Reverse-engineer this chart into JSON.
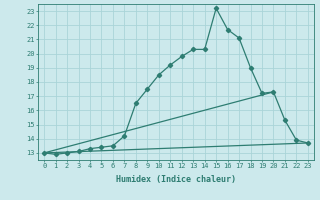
{
  "xlabel": "Humidex (Indice chaleur)",
  "ylabel": "",
  "background_color": "#cce9ec",
  "grid_color": "#aad4d8",
  "line_color": "#2e7d72",
  "xlim": [
    -0.5,
    23.5
  ],
  "ylim": [
    12.5,
    23.5
  ],
  "yticks": [
    13,
    14,
    15,
    16,
    17,
    18,
    19,
    20,
    21,
    22,
    23
  ],
  "xticks": [
    0,
    1,
    2,
    3,
    4,
    5,
    6,
    7,
    8,
    9,
    10,
    11,
    12,
    13,
    14,
    15,
    16,
    17,
    18,
    19,
    20,
    21,
    22,
    23
  ],
  "line1_x": [
    0,
    1,
    2,
    3,
    4,
    5,
    6,
    7,
    8,
    9,
    10,
    11,
    12,
    13,
    14,
    15,
    16,
    17,
    18,
    19,
    20,
    21,
    22,
    23
  ],
  "line1_y": [
    13.0,
    12.9,
    13.0,
    13.1,
    13.3,
    13.4,
    13.5,
    14.2,
    16.5,
    17.5,
    18.5,
    19.2,
    19.8,
    20.3,
    20.3,
    23.2,
    21.7,
    21.1,
    19.0,
    17.2,
    17.3,
    15.3,
    13.9,
    13.7
  ],
  "line2_x": [
    0,
    20
  ],
  "line2_y": [
    13.0,
    17.3
  ],
  "line3_x": [
    0,
    23
  ],
  "line3_y": [
    13.0,
    13.7
  ],
  "marker_size": 2.2,
  "linewidth": 0.9,
  "xlabel_fontsize": 6.0,
  "tick_fontsize": 5.0
}
